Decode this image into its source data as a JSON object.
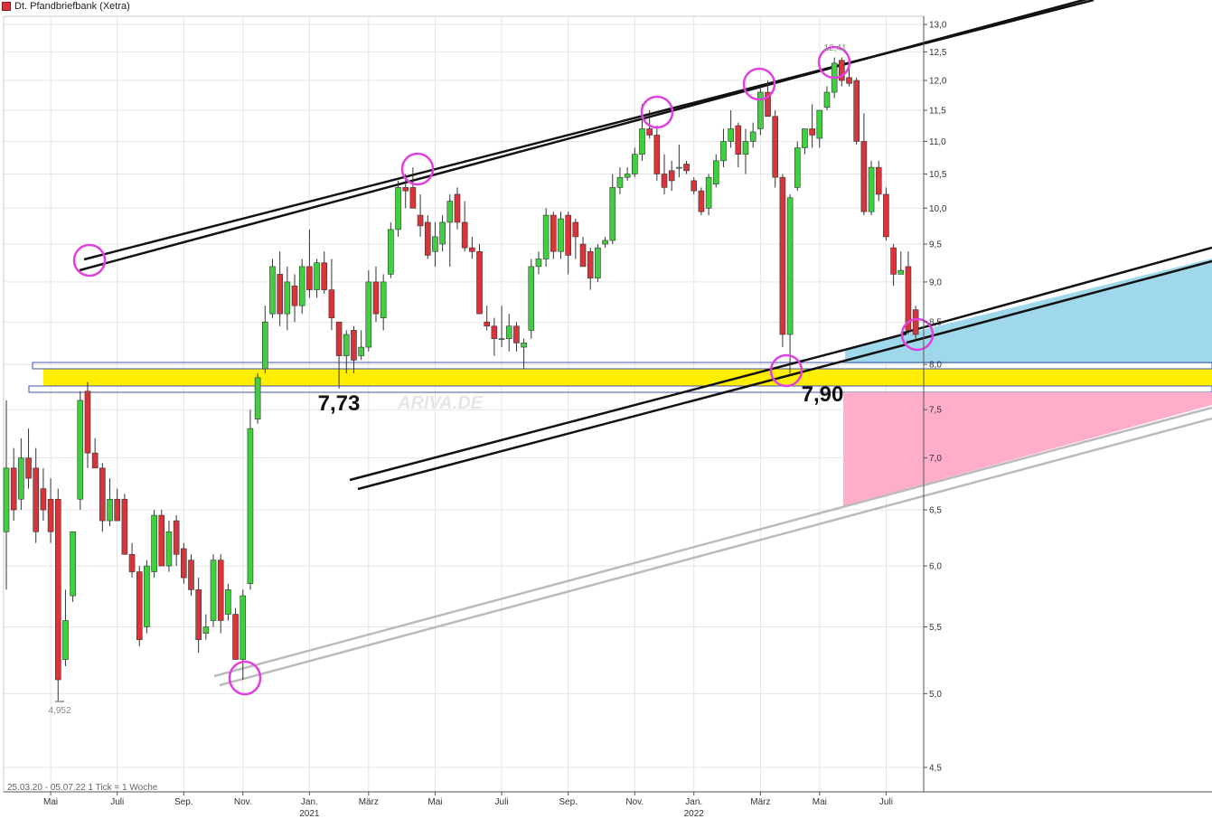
{
  "title": "Dt. Pfandbriefbank (Xetra)",
  "footer": "25.03.20 - 05.07.22   1 Tick = 1 Woche",
  "watermark": "ARIVA.DE",
  "colors": {
    "up": "#3fcf3f",
    "down": "#d9343a",
    "wick": "#333333",
    "cyan": "#9fd8ea",
    "yellow": "#ffee00",
    "pink": "#ffadc8",
    "circle": "#e040e0",
    "channel": "#111111",
    "gray": "#bbbbbb"
  },
  "chart_data": {
    "type": "candlestick",
    "y_scale": "log",
    "ylim": [
      4.35,
      13.0
    ],
    "y_ticks": [
      "13,0",
      "12,5",
      "12,0",
      "11,5",
      "11,0",
      "10,5",
      "10,0",
      "9,5",
      "9,0",
      "8,5",
      "8,0",
      "7,5",
      "7,0",
      "6,5",
      "6,0",
      "5,5",
      "5,0",
      "4,5"
    ],
    "y_tick_values": [
      13.0,
      12.5,
      12.0,
      11.5,
      11.0,
      10.5,
      10.0,
      9.5,
      9.0,
      8.5,
      8.0,
      7.5,
      7.0,
      6.5,
      6.0,
      5.5,
      5.0,
      4.5
    ],
    "x_labels": [
      {
        "label": "Mai",
        "week": 6
      },
      {
        "label": "Juli",
        "week": 15
      },
      {
        "label": "Sep.",
        "week": 24
      },
      {
        "label": "Nov.",
        "week": 32
      },
      {
        "label": "Jan.",
        "week": 41,
        "year": "2021"
      },
      {
        "label": "März",
        "week": 49
      },
      {
        "label": "Mai",
        "week": 58
      },
      {
        "label": "Juli",
        "week": 67
      },
      {
        "label": "Sep.",
        "week": 76
      },
      {
        "label": "Nov.",
        "week": 85
      },
      {
        "label": "Jan.",
        "week": 93,
        "year": "2022"
      },
      {
        "label": "März",
        "week": 102
      },
      {
        "label": "Mai",
        "week": 110
      },
      {
        "label": "Juli",
        "week": 119
      }
    ],
    "candles": [
      {
        "o": 6.3,
        "h": 7.6,
        "l": 5.8,
        "c": 6.9
      },
      {
        "o": 6.9,
        "h": 7.1,
        "l": 6.4,
        "c": 6.5
      },
      {
        "o": 6.6,
        "h": 7.2,
        "l": 6.5,
        "c": 7.0
      },
      {
        "o": 7.0,
        "h": 7.3,
        "l": 6.7,
        "c": 6.8
      },
      {
        "o": 6.9,
        "h": 7.1,
        "l": 6.2,
        "c": 6.3
      },
      {
        "o": 6.7,
        "h": 6.9,
        "l": 6.4,
        "c": 6.5
      },
      {
        "o": 6.6,
        "h": 6.8,
        "l": 6.2,
        "c": 6.3
      },
      {
        "o": 6.6,
        "h": 6.7,
        "l": 4.95,
        "c": 5.1
      },
      {
        "o": 5.25,
        "h": 5.8,
        "l": 5.2,
        "c": 5.55
      },
      {
        "o": 5.75,
        "h": 6.3,
        "l": 5.7,
        "c": 6.3
      },
      {
        "o": 6.6,
        "h": 7.7,
        "l": 6.5,
        "c": 7.6
      },
      {
        "o": 7.7,
        "h": 7.8,
        "l": 6.9,
        "c": 7.05
      },
      {
        "o": 7.05,
        "h": 7.2,
        "l": 6.9,
        "c": 6.9
      },
      {
        "o": 6.9,
        "h": 6.95,
        "l": 6.3,
        "c": 6.4
      },
      {
        "o": 6.4,
        "h": 6.8,
        "l": 6.35,
        "c": 6.6
      },
      {
        "o": 6.6,
        "h": 6.7,
        "l": 6.4,
        "c": 6.4
      },
      {
        "o": 6.6,
        "h": 6.65,
        "l": 6.1,
        "c": 6.1
      },
      {
        "o": 6.1,
        "h": 6.2,
        "l": 5.9,
        "c": 5.95
      },
      {
        "o": 5.95,
        "h": 6.0,
        "l": 5.35,
        "c": 5.4
      },
      {
        "o": 5.5,
        "h": 6.05,
        "l": 5.45,
        "c": 6.0
      },
      {
        "o": 5.95,
        "h": 6.5,
        "l": 5.9,
        "c": 6.45
      },
      {
        "o": 6.45,
        "h": 6.5,
        "l": 6.0,
        "c": 6.0
      },
      {
        "o": 6.0,
        "h": 6.4,
        "l": 5.95,
        "c": 6.3
      },
      {
        "o": 6.4,
        "h": 6.45,
        "l": 6.0,
        "c": 6.1
      },
      {
        "o": 6.15,
        "h": 6.2,
        "l": 5.85,
        "c": 5.9
      },
      {
        "o": 6.05,
        "h": 6.1,
        "l": 5.75,
        "c": 5.8
      },
      {
        "o": 5.8,
        "h": 5.9,
        "l": 5.3,
        "c": 5.4
      },
      {
        "o": 5.45,
        "h": 5.6,
        "l": 5.4,
        "c": 5.5
      },
      {
        "o": 5.55,
        "h": 6.1,
        "l": 5.5,
        "c": 6.05
      },
      {
        "o": 6.05,
        "h": 6.1,
        "l": 5.45,
        "c": 5.55
      },
      {
        "o": 5.6,
        "h": 5.85,
        "l": 5.55,
        "c": 5.8
      },
      {
        "o": 5.6,
        "h": 5.65,
        "l": 5.25,
        "c": 5.25
      },
      {
        "o": 5.25,
        "h": 5.8,
        "l": 5.1,
        "c": 5.75
      },
      {
        "o": 5.85,
        "h": 7.5,
        "l": 5.8,
        "c": 7.3
      },
      {
        "o": 7.4,
        "h": 7.9,
        "l": 7.35,
        "c": 7.85
      },
      {
        "o": 7.95,
        "h": 8.7,
        "l": 7.9,
        "c": 8.5
      },
      {
        "o": 8.6,
        "h": 9.3,
        "l": 8.55,
        "c": 9.2
      },
      {
        "o": 9.1,
        "h": 9.4,
        "l": 8.45,
        "c": 8.6
      },
      {
        "o": 8.6,
        "h": 9.2,
        "l": 8.4,
        "c": 9.0
      },
      {
        "o": 8.95,
        "h": 9.1,
        "l": 8.5,
        "c": 8.7
      },
      {
        "o": 8.7,
        "h": 9.3,
        "l": 8.6,
        "c": 9.2
      },
      {
        "o": 9.2,
        "h": 9.7,
        "l": 8.8,
        "c": 8.9
      },
      {
        "o": 8.9,
        "h": 9.3,
        "l": 8.8,
        "c": 9.25
      },
      {
        "o": 9.25,
        "h": 9.4,
        "l": 8.85,
        "c": 8.9
      },
      {
        "o": 8.9,
        "h": 9.3,
        "l": 8.4,
        "c": 8.55
      },
      {
        "o": 8.5,
        "h": 8.5,
        "l": 7.73,
        "c": 8.1
      },
      {
        "o": 8.1,
        "h": 8.4,
        "l": 7.9,
        "c": 8.35
      },
      {
        "o": 8.4,
        "h": 8.45,
        "l": 7.9,
        "c": 8.05
      },
      {
        "o": 8.1,
        "h": 8.4,
        "l": 8.05,
        "c": 8.2
      },
      {
        "o": 8.2,
        "h": 9.15,
        "l": 8.15,
        "c": 9.0
      },
      {
        "o": 9.0,
        "h": 9.2,
        "l": 8.5,
        "c": 8.6
      },
      {
        "o": 8.55,
        "h": 9.1,
        "l": 8.4,
        "c": 9.0
      },
      {
        "o": 9.1,
        "h": 9.8,
        "l": 9.05,
        "c": 9.7
      },
      {
        "o": 9.7,
        "h": 10.4,
        "l": 9.6,
        "c": 10.3
      },
      {
        "o": 10.3,
        "h": 10.5,
        "l": 10.0,
        "c": 10.25
      },
      {
        "o": 10.3,
        "h": 10.6,
        "l": 10.0,
        "c": 10.0
      },
      {
        "o": 9.9,
        "h": 10.2,
        "l": 9.6,
        "c": 9.75
      },
      {
        "o": 9.8,
        "h": 9.9,
        "l": 9.3,
        "c": 9.35
      },
      {
        "o": 9.4,
        "h": 9.8,
        "l": 9.2,
        "c": 9.6
      },
      {
        "o": 9.5,
        "h": 9.9,
        "l": 9.4,
        "c": 9.8
      },
      {
        "o": 9.8,
        "h": 10.2,
        "l": 9.2,
        "c": 10.1
      },
      {
        "o": 10.2,
        "h": 10.3,
        "l": 9.7,
        "c": 9.8
      },
      {
        "o": 9.8,
        "h": 10.1,
        "l": 9.4,
        "c": 9.45
      },
      {
        "o": 9.45,
        "h": 9.6,
        "l": 9.3,
        "c": 9.4
      },
      {
        "o": 9.4,
        "h": 9.5,
        "l": 8.6,
        "c": 8.6
      },
      {
        "o": 8.5,
        "h": 8.7,
        "l": 8.4,
        "c": 8.45
      },
      {
        "o": 8.45,
        "h": 8.55,
        "l": 8.1,
        "c": 8.3
      },
      {
        "o": 8.3,
        "h": 8.7,
        "l": 8.2,
        "c": 8.3
      },
      {
        "o": 8.3,
        "h": 8.6,
        "l": 8.15,
        "c": 8.45
      },
      {
        "o": 8.45,
        "h": 8.5,
        "l": 8.15,
        "c": 8.25
      },
      {
        "o": 8.2,
        "h": 8.3,
        "l": 7.95,
        "c": 8.25
      },
      {
        "o": 8.4,
        "h": 9.3,
        "l": 8.3,
        "c": 9.2
      },
      {
        "o": 9.2,
        "h": 9.4,
        "l": 9.1,
        "c": 9.3
      },
      {
        "o": 9.3,
        "h": 10.0,
        "l": 9.2,
        "c": 9.9
      },
      {
        "o": 9.9,
        "h": 9.95,
        "l": 9.3,
        "c": 9.4
      },
      {
        "o": 9.4,
        "h": 9.95,
        "l": 9.3,
        "c": 9.85
      },
      {
        "o": 9.9,
        "h": 9.95,
        "l": 9.1,
        "c": 9.35
      },
      {
        "o": 9.8,
        "h": 9.85,
        "l": 9.3,
        "c": 9.6
      },
      {
        "o": 9.5,
        "h": 9.6,
        "l": 9.2,
        "c": 9.2
      },
      {
        "o": 9.4,
        "h": 9.45,
        "l": 8.9,
        "c": 9.05
      },
      {
        "o": 9.05,
        "h": 9.5,
        "l": 9.0,
        "c": 9.45
      },
      {
        "o": 9.5,
        "h": 9.6,
        "l": 9.45,
        "c": 9.55
      },
      {
        "o": 9.55,
        "h": 10.5,
        "l": 9.5,
        "c": 10.3
      },
      {
        "o": 10.3,
        "h": 10.6,
        "l": 10.2,
        "c": 10.45
      },
      {
        "o": 10.45,
        "h": 10.6,
        "l": 10.4,
        "c": 10.5
      },
      {
        "o": 10.5,
        "h": 10.9,
        "l": 10.45,
        "c": 10.8
      },
      {
        "o": 10.8,
        "h": 11.6,
        "l": 10.7,
        "c": 11.2
      },
      {
        "o": 11.2,
        "h": 11.5,
        "l": 11.05,
        "c": 11.1
      },
      {
        "o": 11.1,
        "h": 11.25,
        "l": 10.4,
        "c": 10.5
      },
      {
        "o": 10.5,
        "h": 10.8,
        "l": 10.2,
        "c": 10.3
      },
      {
        "o": 10.55,
        "h": 10.7,
        "l": 10.25,
        "c": 10.4
      },
      {
        "o": 10.6,
        "h": 10.95,
        "l": 10.45,
        "c": 10.6
      },
      {
        "o": 10.65,
        "h": 10.7,
        "l": 10.5,
        "c": 10.55
      },
      {
        "o": 10.4,
        "h": 10.45,
        "l": 10.2,
        "c": 10.25
      },
      {
        "o": 10.25,
        "h": 10.3,
        "l": 9.9,
        "c": 9.95
      },
      {
        "o": 10.0,
        "h": 10.5,
        "l": 9.9,
        "c": 10.45
      },
      {
        "o": 10.35,
        "h": 10.8,
        "l": 10.3,
        "c": 10.7
      },
      {
        "o": 10.7,
        "h": 11.2,
        "l": 10.6,
        "c": 11.0
      },
      {
        "o": 11.0,
        "h": 11.5,
        "l": 10.9,
        "c": 11.2
      },
      {
        "o": 11.25,
        "h": 11.3,
        "l": 10.6,
        "c": 10.8
      },
      {
        "o": 10.8,
        "h": 11.2,
        "l": 10.5,
        "c": 11.0
      },
      {
        "o": 11.0,
        "h": 11.3,
        "l": 10.9,
        "c": 11.15
      },
      {
        "o": 11.2,
        "h": 11.9,
        "l": 11.1,
        "c": 11.8
      },
      {
        "o": 11.8,
        "h": 12.0,
        "l": 11.4,
        "c": 11.4
      },
      {
        "o": 11.4,
        "h": 11.5,
        "l": 10.3,
        "c": 10.45
      },
      {
        "o": 10.45,
        "h": 10.5,
        "l": 8.2,
        "c": 8.35
      },
      {
        "o": 8.35,
        "h": 10.2,
        "l": 7.9,
        "c": 10.15
      },
      {
        "o": 10.3,
        "h": 11.0,
        "l": 10.25,
        "c": 10.9
      },
      {
        "o": 10.9,
        "h": 11.2,
        "l": 10.8,
        "c": 11.2
      },
      {
        "o": 11.2,
        "h": 11.6,
        "l": 10.9,
        "c": 11.1
      },
      {
        "o": 11.05,
        "h": 11.5,
        "l": 10.9,
        "c": 11.5
      },
      {
        "o": 11.55,
        "h": 11.9,
        "l": 11.5,
        "c": 11.8
      },
      {
        "o": 11.8,
        "h": 12.4,
        "l": 11.7,
        "c": 12.3
      },
      {
        "o": 12.35,
        "h": 12.4,
        "l": 11.9,
        "c": 12.0
      },
      {
        "o": 12.05,
        "h": 12.2,
        "l": 11.9,
        "c": 11.95
      },
      {
        "o": 12.0,
        "h": 12.05,
        "l": 10.95,
        "c": 11.0
      },
      {
        "o": 11.0,
        "h": 11.45,
        "l": 9.9,
        "c": 9.95
      },
      {
        "o": 9.95,
        "h": 10.7,
        "l": 9.9,
        "c": 10.6
      },
      {
        "o": 10.6,
        "h": 10.7,
        "l": 10.1,
        "c": 10.2
      },
      {
        "o": 10.2,
        "h": 10.3,
        "l": 9.55,
        "c": 9.6
      },
      {
        "o": 9.45,
        "h": 9.5,
        "l": 8.95,
        "c": 9.1
      },
      {
        "o": 9.1,
        "h": 9.4,
        "l": 9.1,
        "c": 9.15
      },
      {
        "o": 9.2,
        "h": 9.4,
        "l": 8.35,
        "c": 8.4
      },
      {
        "o": 8.65,
        "h": 8.7,
        "l": 8.3,
        "c": 8.35
      }
    ],
    "low_label": "4,952",
    "high_label": "12,41",
    "annotations": [
      {
        "text": "7,73",
        "value": 7.73
      },
      {
        "text": "7,90",
        "value": 7.9
      }
    ]
  }
}
